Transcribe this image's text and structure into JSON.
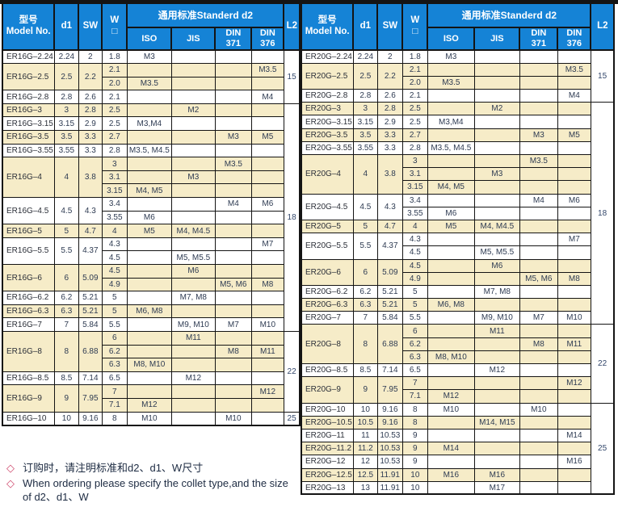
{
  "colors": {
    "header_bg": "#1583d6",
    "row_shade": "#f6ecc8",
    "note_diamond": "#cf4a6e",
    "border": "#141414",
    "cell_text": "#2e3b52"
  },
  "header": {
    "model": "型号\nModel No.",
    "d1": "d1",
    "sw": "SW",
    "w": "W\n□",
    "standard": "通用标准Standerd  d2",
    "sub": [
      "ISO",
      "JIS",
      "DIN\n371",
      "DIN\n376"
    ],
    "l2": "L2"
  },
  "tables": [
    {
      "id": "er16g",
      "l2_spans": [
        {
          "value": "15",
          "rows": 4
        },
        {
          "value": "18",
          "rows": 17
        },
        {
          "value": "22",
          "rows": 6
        },
        {
          "value": "25",
          "rows": 1
        }
      ],
      "groups": [
        {
          "model": "ER16G–2.24",
          "d1": "2.24",
          "sw": "2",
          "shade": false,
          "rows": [
            {
              "w": "1.8",
              "iso": "M3"
            }
          ]
        },
        {
          "model": "ER16G–2.5",
          "d1": "2.5",
          "sw": "2.2",
          "shade": true,
          "rows": [
            {
              "w": "2.1",
              "din376": "M3.5"
            },
            {
              "w": "2.0",
              "iso": "M3.5"
            }
          ]
        },
        {
          "model": "ER16G–2.8",
          "d1": "2.8",
          "sw": "2.6",
          "shade": false,
          "rows": [
            {
              "w": "2.1",
              "din376": "M4"
            }
          ]
        },
        {
          "model": "ER16G–3",
          "d1": "3",
          "sw": "2.8",
          "shade": true,
          "rows": [
            {
              "w": "2.5",
              "jis": "M2"
            }
          ]
        },
        {
          "model": "ER16G–3.15",
          "d1": "3.15",
          "sw": "2.9",
          "shade": false,
          "rows": [
            {
              "w": "2.5",
              "iso": "M3,M4"
            }
          ]
        },
        {
          "model": "ER16G–3.5",
          "d1": "3.5",
          "sw": "3.3",
          "shade": true,
          "rows": [
            {
              "w": "2.7",
              "din371": "M3",
              "din376": "M5"
            }
          ]
        },
        {
          "model": "ER16G–3.55",
          "d1": "3.55",
          "sw": "3.3",
          "shade": false,
          "rows": [
            {
              "w": "2.8",
              "iso": "M3.5, M4.5"
            }
          ]
        },
        {
          "model": "ER16G–4",
          "d1": "4",
          "sw": "3.8",
          "shade": true,
          "rows": [
            {
              "w": "3",
              "din371": "M3.5"
            },
            {
              "w": "3.1",
              "jis": "M3"
            },
            {
              "w": "3.15",
              "iso": "M4, M5"
            }
          ]
        },
        {
          "model": "ER16G–4.5",
          "d1": "4.5",
          "sw": "4.3",
          "shade": false,
          "rows": [
            {
              "w": "3.4",
              "din371": "M4",
              "din376": "M6"
            },
            {
              "w": "3.55",
              "iso": "M6"
            }
          ]
        },
        {
          "model": "ER16G–5",
          "d1": "5",
          "sw": "4.7",
          "shade": true,
          "rows": [
            {
              "w": "4",
              "iso": "M5",
              "jis": "M4, M4.5"
            }
          ]
        },
        {
          "model": "ER16G–5.5",
          "d1": "5.5",
          "sw": "4.37",
          "shade": false,
          "rows": [
            {
              "w": "4.3",
              "din376": "M7"
            },
            {
              "w": "4.5",
              "jis": "M5, M5.5"
            }
          ]
        },
        {
          "model": "ER16G–6",
          "d1": "6",
          "sw": "5.09",
          "shade": true,
          "rows": [
            {
              "w": "4.5",
              "jis": "M6"
            },
            {
              "w": "4.9",
              "din371": "M5, M6",
              "din376": "M8"
            }
          ]
        },
        {
          "model": "ER16G–6.2",
          "d1": "6.2",
          "sw": "5.21",
          "shade": false,
          "rows": [
            {
              "w": "5",
              "jis": "M7, M8"
            }
          ]
        },
        {
          "model": "ER16G–6.3",
          "d1": "6.3",
          "sw": "5.21",
          "shade": true,
          "rows": [
            {
              "w": "5",
              "iso": "M6, M8"
            }
          ]
        },
        {
          "model": "ER16G–7",
          "d1": "7",
          "sw": "5.84",
          "shade": false,
          "rows": [
            {
              "w": "5.5",
              "jis": "M9, M10",
              "din371": "M7",
              "din376": "M10"
            }
          ]
        },
        {
          "model": "ER16G–8",
          "d1": "8",
          "sw": "6.88",
          "shade": true,
          "rows": [
            {
              "w": "6",
              "jis": "M11"
            },
            {
              "w": "6.2",
              "din371": "M8",
              "din376": "M11"
            },
            {
              "w": "6.3",
              "iso": "M8, M10"
            }
          ]
        },
        {
          "model": "ER16G–8.5",
          "d1": "8.5",
          "sw": "7.14",
          "shade": false,
          "rows": [
            {
              "w": "6.5",
              "jis": "M12"
            }
          ]
        },
        {
          "model": "ER16G–9",
          "d1": "9",
          "sw": "7.95",
          "shade": true,
          "rows": [
            {
              "w": "7",
              "din376": "M12"
            },
            {
              "w": "7.1",
              "iso": "M12"
            }
          ]
        },
        {
          "model": "ER16G–10",
          "d1": "10",
          "sw": "9.16",
          "shade": false,
          "rows": [
            {
              "w": "8",
              "iso": "M10",
              "din371": "M10"
            }
          ]
        }
      ]
    },
    {
      "id": "er20g",
      "l2_spans": [
        {
          "value": "15",
          "rows": 4
        },
        {
          "value": "18",
          "rows": 17
        },
        {
          "value": "22",
          "rows": 6
        },
        {
          "value": "25",
          "rows": 7
        }
      ],
      "groups": [
        {
          "model": "ER20G–2.24",
          "d1": "2.24",
          "sw": "2",
          "shade": false,
          "rows": [
            {
              "w": "1.8",
              "iso": "M3"
            }
          ]
        },
        {
          "model": "ER20G–2.5",
          "d1": "2.5",
          "sw": "2.2",
          "shade": true,
          "rows": [
            {
              "w": "2.1",
              "din376": "M3.5"
            },
            {
              "w": "2.0",
              "iso": "M3.5"
            }
          ]
        },
        {
          "model": "ER20G–2.8",
          "d1": "2.8",
          "sw": "2.6",
          "shade": false,
          "rows": [
            {
              "w": "2.1",
              "din376": "M4"
            }
          ]
        },
        {
          "model": "ER20G–3",
          "d1": "3",
          "sw": "2.8",
          "shade": true,
          "rows": [
            {
              "w": "2.5",
              "jis": "M2"
            }
          ]
        },
        {
          "model": "ER20G–3.15",
          "d1": "3.15",
          "sw": "2.9",
          "shade": false,
          "rows": [
            {
              "w": "2.5",
              "iso": "M3,M4"
            }
          ]
        },
        {
          "model": "ER20G–3.5",
          "d1": "3.5",
          "sw": "3.3",
          "shade": true,
          "rows": [
            {
              "w": "2.7",
              "din371": "M3",
              "din376": "M5"
            }
          ]
        },
        {
          "model": "ER20G–3.55",
          "d1": "3.55",
          "sw": "3.3",
          "shade": false,
          "rows": [
            {
              "w": "2.8",
              "iso": "M3.5, M4.5"
            }
          ]
        },
        {
          "model": "ER20G–4",
          "d1": "4",
          "sw": "3.8",
          "shade": true,
          "rows": [
            {
              "w": "3",
              "din371": "M3.5"
            },
            {
              "w": "3.1",
              "jis": "M3"
            },
            {
              "w": "3.15",
              "iso": "M4, M5"
            }
          ]
        },
        {
          "model": "ER20G–4.5",
          "d1": "4.5",
          "sw": "4.3",
          "shade": false,
          "rows": [
            {
              "w": "3.4",
              "din371": "M4",
              "din376": "M6"
            },
            {
              "w": "3.55",
              "iso": "M6"
            }
          ]
        },
        {
          "model": "ER20G–5",
          "d1": "5",
          "sw": "4.7",
          "shade": true,
          "rows": [
            {
              "w": "4",
              "iso": "M5",
              "jis": "M4, M4.5"
            }
          ]
        },
        {
          "model": "ER20G–5.5",
          "d1": "5.5",
          "sw": "4.37",
          "shade": false,
          "rows": [
            {
              "w": "4.3",
              "din376": "M7"
            },
            {
              "w": "4.5",
              "jis": "M5, M5.5"
            }
          ]
        },
        {
          "model": "ER20G–6",
          "d1": "6",
          "sw": "5.09",
          "shade": true,
          "rows": [
            {
              "w": "4.5",
              "jis": "M6"
            },
            {
              "w": "4.9",
              "din371": "M5, M6",
              "din376": "M8"
            }
          ]
        },
        {
          "model": "ER20G–6.2",
          "d1": "6.2",
          "sw": "5.21",
          "shade": false,
          "rows": [
            {
              "w": "5",
              "jis": "M7, M8"
            }
          ]
        },
        {
          "model": "ER20G–6.3",
          "d1": "6.3",
          "sw": "5.21",
          "shade": true,
          "rows": [
            {
              "w": "5",
              "iso": "M6, M8"
            }
          ]
        },
        {
          "model": "ER20G–7",
          "d1": "7",
          "sw": "5.84",
          "shade": false,
          "rows": [
            {
              "w": "5.5",
              "jis": "M9, M10",
              "din371": "M7",
              "din376": "M10"
            }
          ]
        },
        {
          "model": "ER20G–8",
          "d1": "8",
          "sw": "6.88",
          "shade": true,
          "rows": [
            {
              "w": "6",
              "jis": "M11"
            },
            {
              "w": "6.2",
              "din371": "M8",
              "din376": "M11"
            },
            {
              "w": "6.3",
              "iso": "M8, M10"
            }
          ]
        },
        {
          "model": "ER20G–8.5",
          "d1": "8.5",
          "sw": "7.14",
          "shade": false,
          "rows": [
            {
              "w": "6.5",
              "jis": "M12"
            }
          ]
        },
        {
          "model": "ER20G–9",
          "d1": "9",
          "sw": "7.95",
          "shade": true,
          "rows": [
            {
              "w": "7",
              "din376": "M12"
            },
            {
              "w": "7.1",
              "iso": "M12"
            }
          ]
        },
        {
          "model": "ER20G–10",
          "d1": "10",
          "sw": "9.16",
          "shade": false,
          "rows": [
            {
              "w": "8",
              "iso": "M10",
              "din371": "M10"
            }
          ]
        },
        {
          "model": "ER20G–10.5",
          "d1": "10.5",
          "sw": "9.16",
          "shade": true,
          "rows": [
            {
              "w": "8",
              "jis": "M14, M15"
            }
          ]
        },
        {
          "model": "ER20G–11",
          "d1": "11",
          "sw": "10.53",
          "shade": false,
          "rows": [
            {
              "w": "9",
              "din376": "M14"
            }
          ]
        },
        {
          "model": "ER20G–11.2",
          "d1": "11.2",
          "sw": "10.53",
          "shade": true,
          "rows": [
            {
              "w": "9",
              "iso": "M14"
            }
          ]
        },
        {
          "model": "ER20G–12",
          "d1": "12",
          "sw": "10.53",
          "shade": false,
          "rows": [
            {
              "w": "9",
              "din376": "M16"
            }
          ]
        },
        {
          "model": "ER20G–12.5",
          "d1": "12.5",
          "sw": "11.91",
          "shade": true,
          "rows": [
            {
              "w": "10",
              "iso": "M16",
              "jis": "M16"
            }
          ]
        },
        {
          "model": "ER20G–13",
          "d1": "13",
          "sw": "11.91",
          "shade": false,
          "rows": [
            {
              "w": "10",
              "jis": "M17"
            }
          ]
        }
      ]
    }
  ],
  "notes": [
    "订购时，请注明标准和d2、d1、W尺寸",
    "When ordering please specify the collet type,and the size of d2、d1、W"
  ]
}
